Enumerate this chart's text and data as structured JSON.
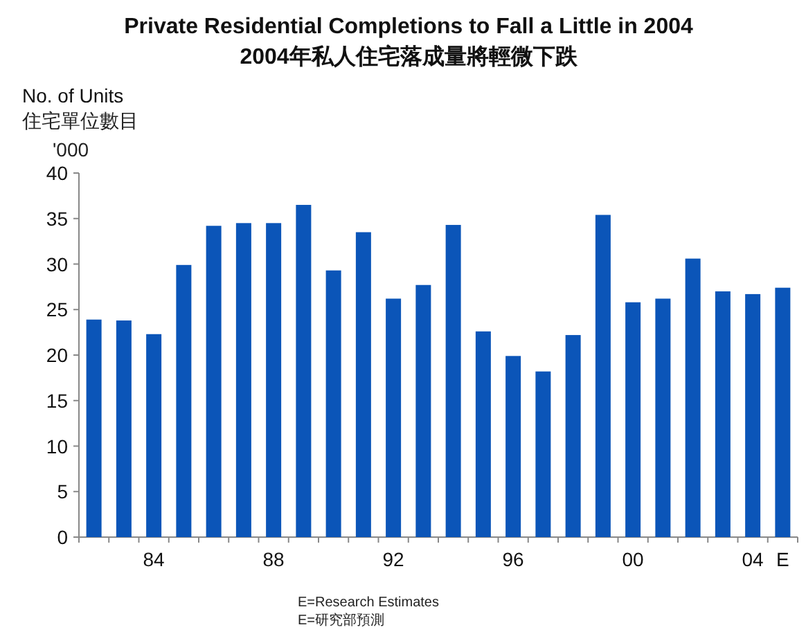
{
  "chart_data": {
    "type": "bar",
    "title": "Private Residential Completions to Fall a Little in 2004",
    "subtitle": "2004年私人住宅落成量將輕微下跌",
    "ylabel": "No. of Units",
    "annotations": [
      "住宅單位數目",
      "'000",
      "E=Research Estimates",
      "E=研究部預測"
    ],
    "categories": [
      null,
      null,
      "84",
      null,
      null,
      null,
      "88",
      null,
      null,
      null,
      "92",
      null,
      null,
      null,
      "96",
      null,
      null,
      null,
      "00",
      null,
      null,
      null,
      "04",
      "E"
    ],
    "values": [
      23.9,
      23.8,
      22.3,
      29.9,
      34.2,
      34.5,
      34.5,
      36.5,
      29.3,
      33.5,
      26.2,
      27.7,
      34.3,
      22.6,
      19.9,
      18.2,
      22.2,
      35.4,
      25.8,
      26.2,
      30.6,
      27.0,
      26.7,
      27.4
    ],
    "color": "#0b55b8",
    "ylim": [
      0,
      40
    ],
    "yticks": [
      0,
      5,
      10,
      15,
      20,
      25,
      30,
      35,
      40
    ],
    "grid": false
  }
}
